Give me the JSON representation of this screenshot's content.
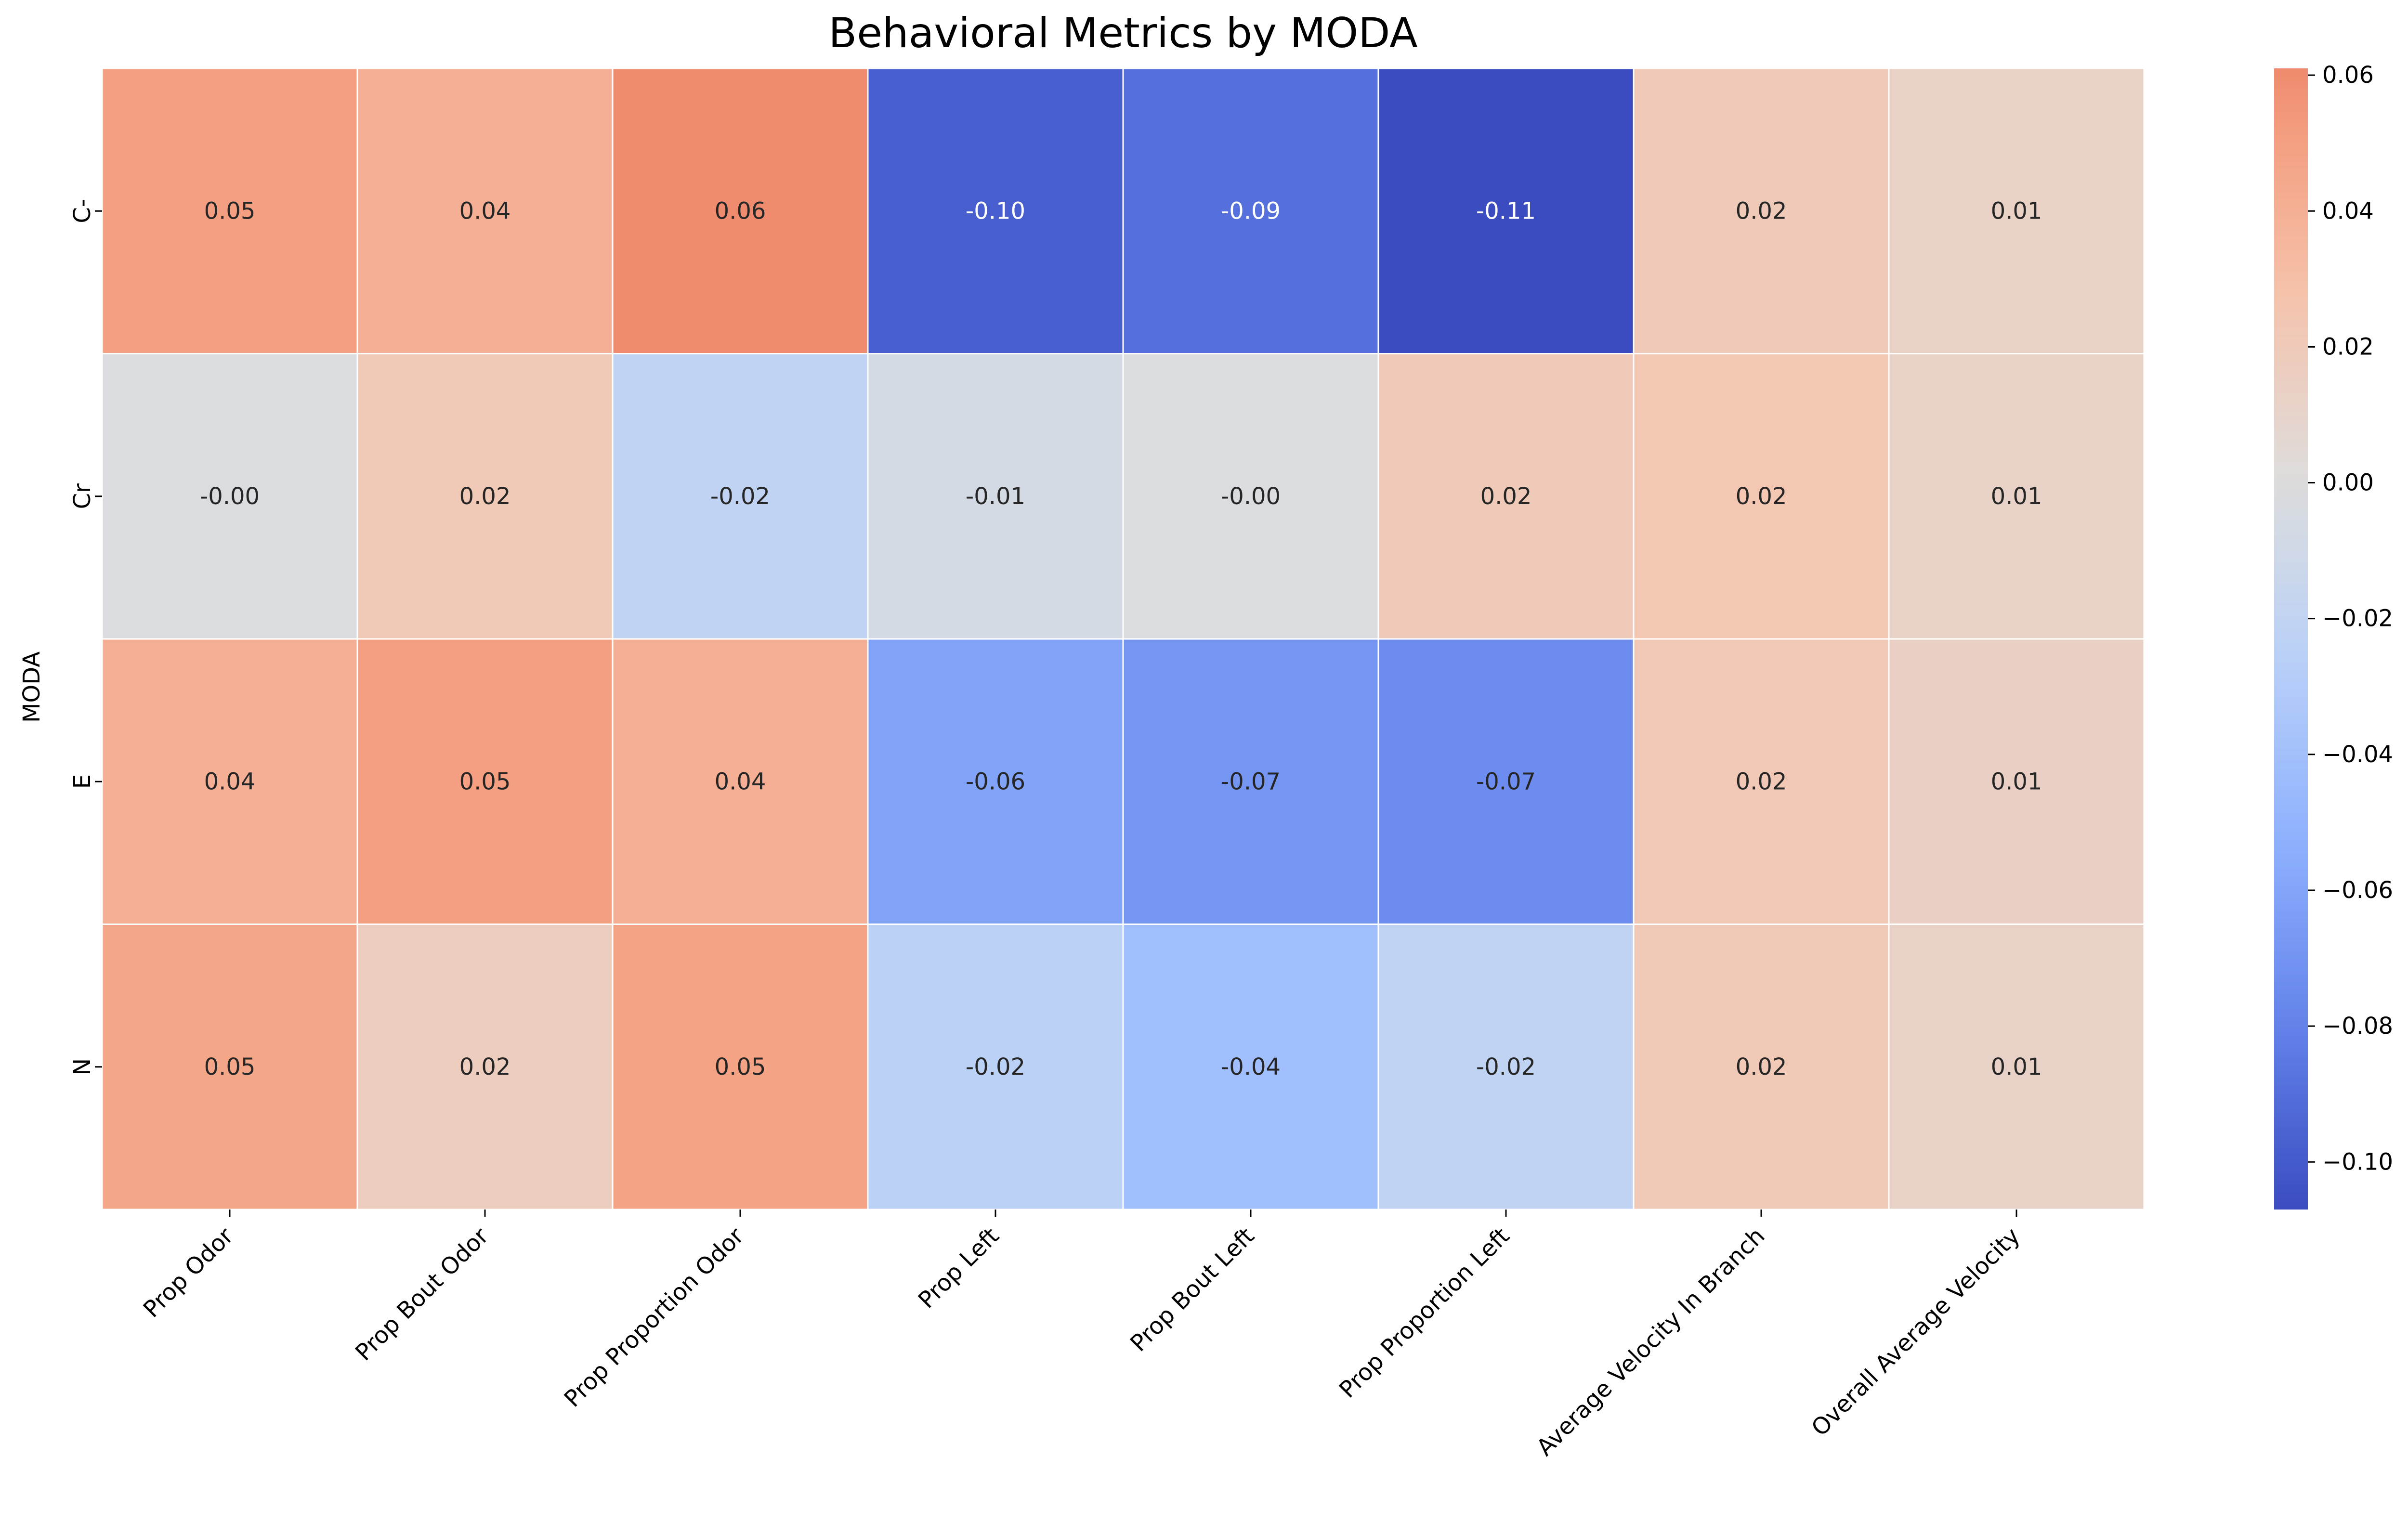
{
  "chart_data": {
    "type": "heatmap",
    "title": "Behavioral Metrics by MODA",
    "xlabel": "",
    "ylabel": "MODA",
    "x_categories": [
      "Prop Odor",
      "Prop Bout Odor",
      "Prop Proportion Odor",
      "Prop Left",
      "Prop Bout Left",
      "Prop Proportion Left",
      "Average Velocity In Branch",
      "Overall Average Velocity"
    ],
    "y_categories": [
      "C-",
      "Cr",
      "E",
      "N"
    ],
    "values": [
      [
        0.05,
        0.04,
        0.06,
        -0.1,
        -0.09,
        -0.11,
        0.02,
        0.01
      ],
      [
        -0.0,
        0.02,
        -0.02,
        -0.01,
        -0.0,
        0.02,
        0.02,
        0.01
      ],
      [
        0.04,
        0.05,
        0.04,
        -0.06,
        -0.07,
        -0.07,
        0.02,
        0.01
      ],
      [
        0.05,
        0.02,
        0.05,
        -0.02,
        -0.04,
        -0.02,
        0.02,
        0.01
      ]
    ],
    "cell_values": [
      [
        0.05,
        0.04,
        0.06,
        -0.098,
        -0.089,
        -0.107,
        0.02,
        0.013
      ],
      [
        -0.002,
        0.021,
        -0.02,
        -0.007,
        -0.002,
        0.02,
        0.024,
        0.012
      ],
      [
        0.04,
        0.05,
        0.04,
        -0.061,
        -0.069,
        -0.074,
        0.022,
        0.014
      ],
      [
        0.046,
        0.017,
        0.048,
        -0.024,
        -0.041,
        -0.021,
        0.021,
        0.012
      ]
    ],
    "annotations": [
      [
        "0.05",
        "0.04",
        "0.06",
        "-0.10",
        "-0.09",
        "-0.11",
        "0.02",
        "0.01"
      ],
      [
        "-0.00",
        "0.02",
        "-0.02",
        "-0.01",
        "-0.00",
        "0.02",
        "0.02",
        "0.01"
      ],
      [
        "0.04",
        "0.05",
        "0.04",
        "-0.06",
        "-0.07",
        "-0.07",
        "0.02",
        "0.01"
      ],
      [
        "0.05",
        "0.02",
        "0.05",
        "-0.02",
        "-0.04",
        "-0.02",
        "0.02",
        "0.01"
      ]
    ],
    "colormap": "coolwarm",
    "color_center": 0.0,
    "vmin": -0.107,
    "vmax": 0.061,
    "colorbar": {
      "ticks": [
        0.06,
        0.04,
        0.02,
        0.0,
        -0.02,
        -0.04,
        -0.06,
        -0.08,
        -0.1
      ],
      "tick_labels": [
        "0.06",
        "0.04",
        "0.02",
        "0.00",
        "−0.02",
        "−0.04",
        "−0.06",
        "−0.08",
        "−0.10"
      ],
      "placement": "right"
    },
    "grid": false,
    "cell_border_color": "#ffffff",
    "annotation_colors": {
      "dark": "#262626",
      "light": "#ffffff"
    },
    "text_color": "#000000"
  }
}
